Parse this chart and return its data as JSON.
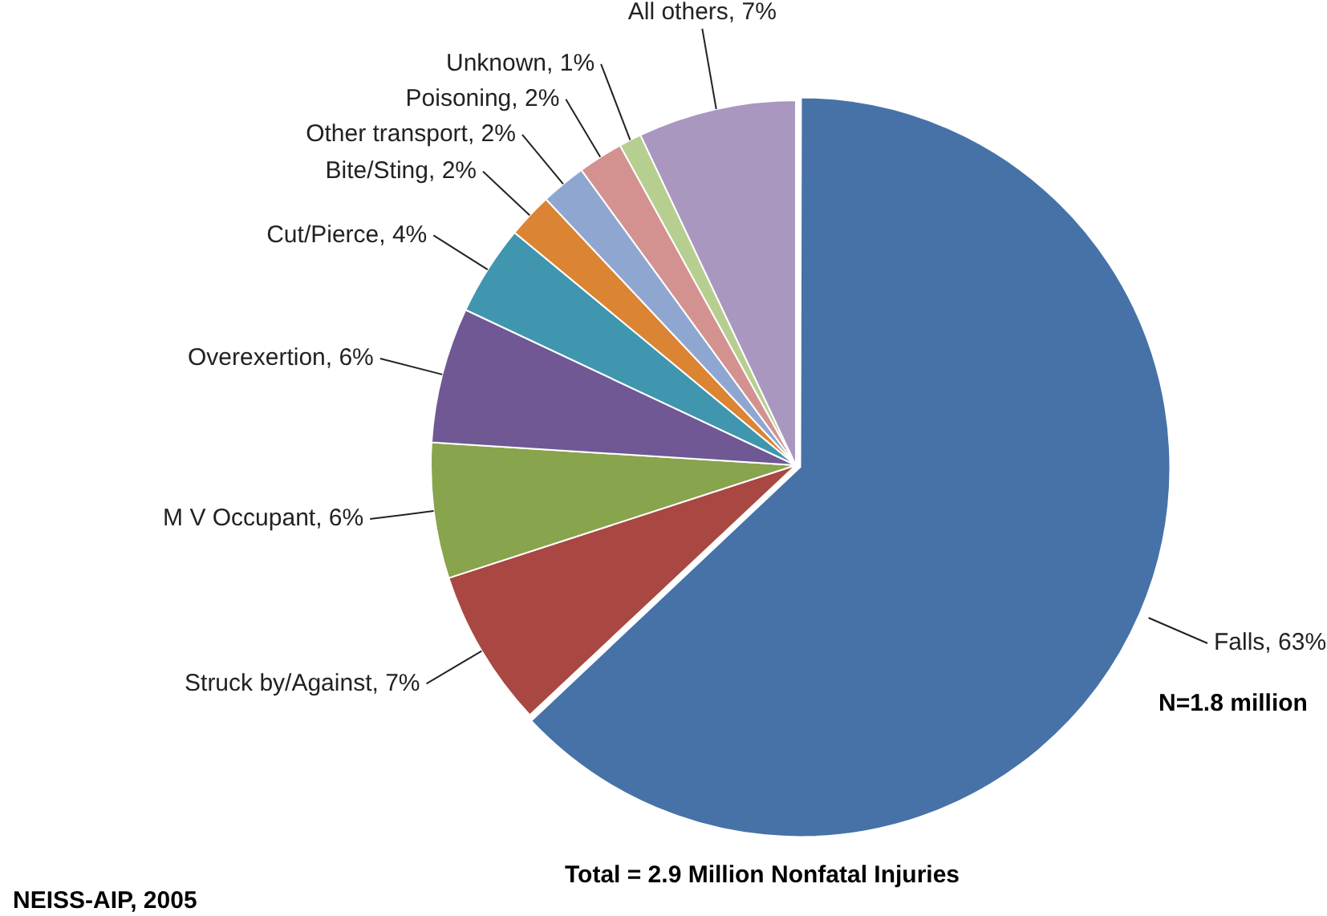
{
  "chart_data": {
    "type": "pie",
    "categories": [
      "Falls",
      "Struck by/Against",
      "M V Occupant",
      "Overexertion",
      "Cut/Pierce",
      "Bite/Sting",
      "Other transport",
      "Poisoning",
      "Unknown",
      "All others"
    ],
    "values": [
      63,
      7,
      6,
      6,
      4,
      2,
      2,
      2,
      1,
      7
    ],
    "value_labels": [
      "63%",
      "7%",
      "6%",
      "6%",
      "4%",
      "2%",
      "2%",
      "2%",
      "1%",
      "7%"
    ],
    "colors": [
      "#4672a8",
      "#a94743",
      "#88a44c",
      "#6f5894",
      "#3f96ae",
      "#db8433",
      "#8fa7d0",
      "#d39290",
      "#b6cf91",
      "#a997bf"
    ],
    "annotations": [
      "N=1.8 million",
      "Total = 2.9 Million Nonfatal Injuries",
      "NEISS-AIP, 2005"
    ]
  }
}
